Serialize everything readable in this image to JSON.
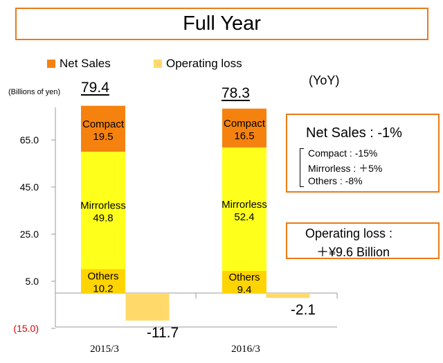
{
  "title": "Full Year",
  "legend": {
    "net_sales": "Net Sales",
    "operating_loss": "Operating loss"
  },
  "unit_label": "(Billions of yen)",
  "yoy_label": "(YoY)",
  "colors": {
    "compact": "#F5820F",
    "mirrorless": "#FFFF1C",
    "others": "#FFD400",
    "operating_loss": "#FFD96A",
    "accent": "#E97A18",
    "negative_tick": "#E00000"
  },
  "chart_data": {
    "type": "bar",
    "stacked": true,
    "title": "Full Year",
    "ylabel": "(Billions of yen)",
    "yticks": [
      "65.0",
      "45.0",
      "25.0",
      "5.0",
      "(15.0)"
    ],
    "ytick_values": [
      65,
      45,
      25,
      5,
      -15
    ],
    "ylim": [
      -15,
      80
    ],
    "categories": [
      "2015/3",
      "2016/3"
    ],
    "totals": [
      "79.4",
      "78.3"
    ],
    "series": [
      {
        "name": "Others",
        "label": "Others",
        "values": [
          10.2,
          9.4
        ],
        "value_labels": [
          "10.2",
          "9.4"
        ]
      },
      {
        "name": "Mirrorless",
        "label": "Mirrorless",
        "values": [
          49.8,
          52.4
        ],
        "value_labels": [
          "49.8",
          "52.4"
        ]
      },
      {
        "name": "Compact",
        "label": "Compact",
        "values": [
          19.5,
          16.5
        ],
        "value_labels": [
          "19.5",
          "16.5"
        ]
      }
    ],
    "operating_loss": {
      "name": "Operating loss",
      "values": [
        -11.7,
        -2.1
      ],
      "value_labels": [
        "-11.7",
        "-2.1"
      ]
    }
  },
  "net_sales_box": {
    "title": "Net Sales : -1%",
    "items": [
      "Compact : -15%",
      "Mirrorless : ＋5%",
      "Others : -8%"
    ]
  },
  "operating_loss_box": {
    "line1": "Operating loss :",
    "line2": "＋¥9.6 Billion"
  }
}
